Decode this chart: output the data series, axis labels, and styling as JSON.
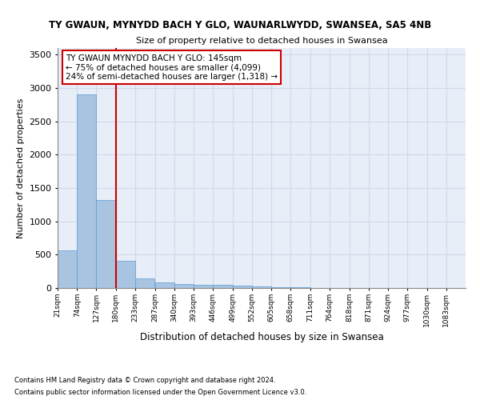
{
  "title1": "TY GWAUN, MYNYDD BACH Y GLO, WAUNARLWYDD, SWANSEA, SA5 4NB",
  "title2": "Size of property relative to detached houses in Swansea",
  "xlabel": "Distribution of detached houses by size in Swansea",
  "ylabel": "Number of detached properties",
  "footnote1": "Contains HM Land Registry data © Crown copyright and database right 2024.",
  "footnote2": "Contains public sector information licensed under the Open Government Licence v3.0.",
  "bins": [
    21,
    74,
    127,
    180,
    233,
    287,
    340,
    393,
    446,
    499,
    552,
    605,
    658,
    711,
    764,
    818,
    871,
    924,
    977,
    1030,
    1083
  ],
  "values": [
    560,
    2900,
    1320,
    410,
    145,
    80,
    55,
    50,
    45,
    35,
    20,
    12,
    8,
    5,
    3,
    2,
    2,
    1,
    1,
    1,
    0
  ],
  "bar_color": "#a8c4e0",
  "bar_edge_color": "#5b9bd5",
  "grid_color": "#d0d8e8",
  "red_line_color": "#cc0000",
  "property_bin_index": 2,
  "annotation_text1": "TY GWAUN MYNYDD BACH Y GLO: 145sqm",
  "annotation_text2": "← 75% of detached houses are smaller (4,099)",
  "annotation_text3": "24% of semi-detached houses are larger (1,318) →",
  "annotation_box_color": "#ffffff",
  "annotation_border_color": "#cc0000",
  "ylim": [
    0,
    3600
  ],
  "yticks": [
    0,
    500,
    1000,
    1500,
    2000,
    2500,
    3000,
    3500
  ],
  "background_color": "#e8eef8"
}
